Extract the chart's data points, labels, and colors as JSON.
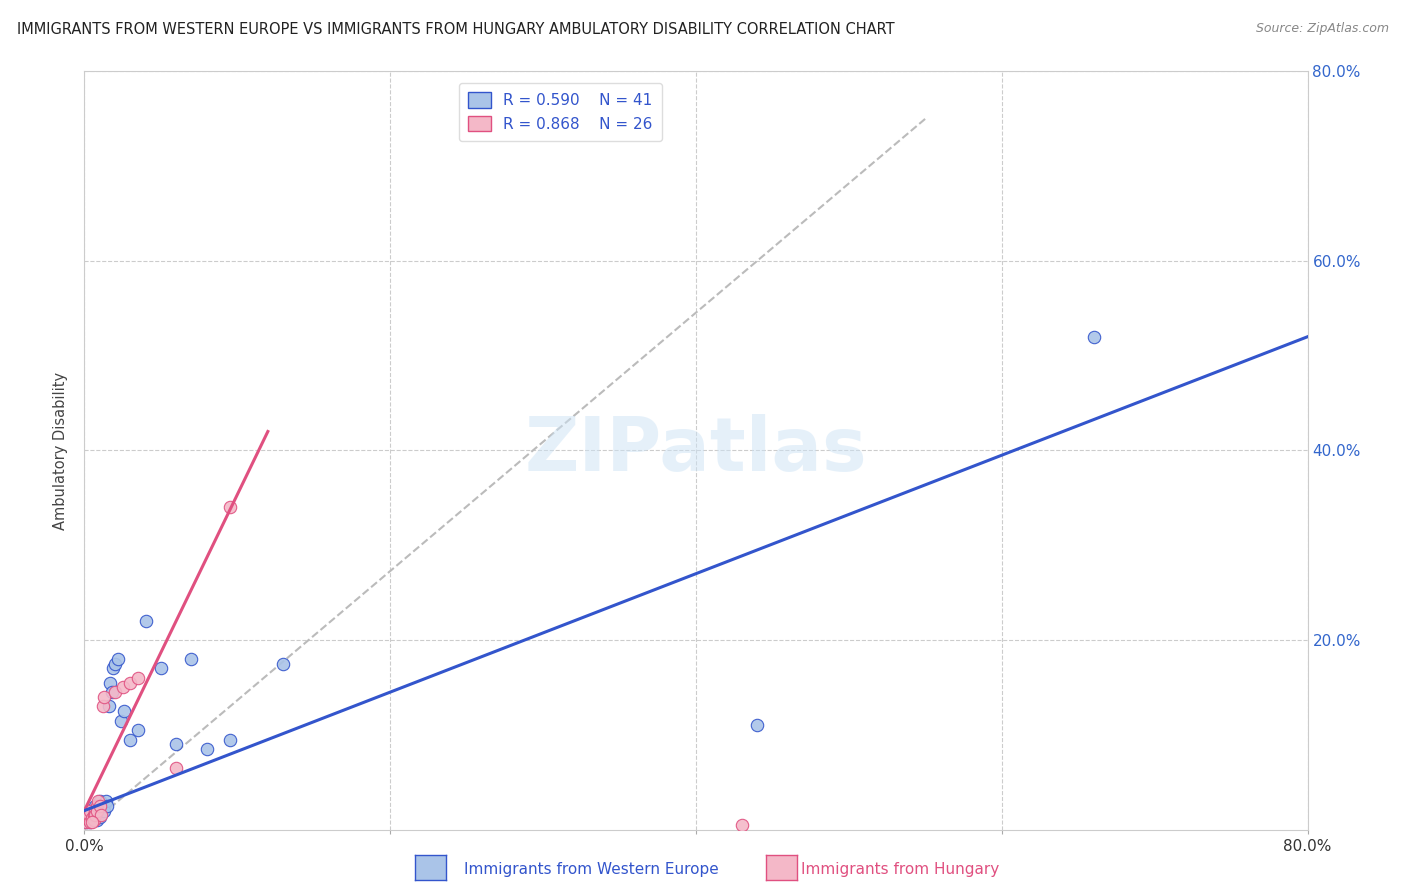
{
  "title": "IMMIGRANTS FROM WESTERN EUROPE VS IMMIGRANTS FROM HUNGARY AMBULATORY DISABILITY CORRELATION CHART",
  "source": "Source: ZipAtlas.com",
  "ylabel": "Ambulatory Disability",
  "xlim": [
    0.0,
    0.8
  ],
  "ylim": [
    0.0,
    0.8
  ],
  "xtick_labels": [
    "0.0%",
    "",
    "",
    "",
    "80.0%"
  ],
  "xtick_values": [
    0.0,
    0.2,
    0.4,
    0.6,
    0.8
  ],
  "ytick_labels": [
    "20.0%",
    "40.0%",
    "60.0%",
    "80.0%"
  ],
  "ytick_values": [
    0.2,
    0.4,
    0.6,
    0.8
  ],
  "grid_color": "#cccccc",
  "background_color": "#ffffff",
  "watermark": "ZIPatlas",
  "legend_r1": "R = 0.590",
  "legend_n1": "N = 41",
  "legend_r2": "R = 0.868",
  "legend_n2": "N = 26",
  "series1_name": "Immigrants from Western Europe",
  "series2_name": "Immigrants from Hungary",
  "series1_color": "#aac4e8",
  "series2_color": "#f4b8c8",
  "series1_line_color": "#3355cc",
  "series2_line_color": "#e05080",
  "trend_line_color": "#bbbbbb",
  "title_color": "#222222",
  "axis_label_color": "#444444",
  "tick_label_color": "#333333",
  "right_tick_color": "#3366cc",
  "series1_x": [
    0.002,
    0.003,
    0.003,
    0.004,
    0.004,
    0.005,
    0.005,
    0.006,
    0.006,
    0.007,
    0.007,
    0.008,
    0.008,
    0.009,
    0.009,
    0.01,
    0.01,
    0.011,
    0.012,
    0.013,
    0.014,
    0.015,
    0.016,
    0.017,
    0.018,
    0.019,
    0.02,
    0.022,
    0.024,
    0.026,
    0.03,
    0.035,
    0.04,
    0.05,
    0.06,
    0.07,
    0.08,
    0.095,
    0.13,
    0.44,
    0.66
  ],
  "series1_y": [
    0.008,
    0.01,
    0.012,
    0.008,
    0.015,
    0.01,
    0.015,
    0.012,
    0.02,
    0.015,
    0.025,
    0.02,
    0.01,
    0.025,
    0.015,
    0.03,
    0.013,
    0.02,
    0.025,
    0.02,
    0.03,
    0.025,
    0.13,
    0.155,
    0.145,
    0.17,
    0.175,
    0.18,
    0.115,
    0.125,
    0.095,
    0.105,
    0.22,
    0.17,
    0.09,
    0.18,
    0.085,
    0.095,
    0.175,
    0.11,
    0.52
  ],
  "series2_x": [
    0.001,
    0.002,
    0.003,
    0.003,
    0.004,
    0.004,
    0.005,
    0.006,
    0.006,
    0.007,
    0.007,
    0.008,
    0.008,
    0.009,
    0.01,
    0.011,
    0.012,
    0.013,
    0.02,
    0.025,
    0.03,
    0.035,
    0.06,
    0.095,
    0.005,
    0.43
  ],
  "series2_y": [
    0.008,
    0.012,
    0.01,
    0.015,
    0.008,
    0.02,
    0.012,
    0.015,
    0.01,
    0.02,
    0.015,
    0.025,
    0.02,
    0.03,
    0.025,
    0.015,
    0.13,
    0.14,
    0.145,
    0.15,
    0.155,
    0.16,
    0.065,
    0.34,
    0.008,
    0.005
  ],
  "series1_trend": [
    0.0,
    0.8,
    0.02,
    0.52
  ],
  "series2_trend": [
    0.0,
    0.12,
    0.02,
    0.42
  ],
  "diagonal_trend": [
    0.0,
    0.55,
    0.0,
    0.75
  ],
  "marker_size": 80,
  "marker_edge_width": 0.8
}
